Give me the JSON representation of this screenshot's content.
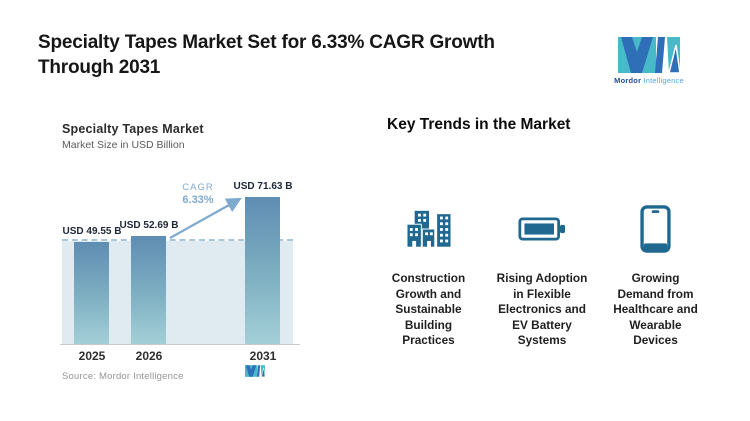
{
  "header": {
    "title": "Specialty Tapes Market Set for 6.33% CAGR Growth\nThrough 2031",
    "brand": {
      "name_bold": "Mordor",
      "name_light": "Intelligence"
    }
  },
  "chart": {
    "title": "Specialty Tapes Market",
    "subtitle": "Market Size in USD Billion",
    "cagr": {
      "label": "CAGR",
      "value": "6.33%"
    },
    "source": "Source: Mordor Intelligence"
  },
  "chart_data": {
    "type": "bar",
    "title": "Specialty Tapes Market",
    "subtitle": "Market Size in USD Billion",
    "unit": "USD Billion",
    "categories": [
      "2025",
      "2026",
      "2031"
    ],
    "values": [
      49.55,
      52.69,
      71.63
    ],
    "data_labels": [
      "USD 49.55 B",
      "USD 52.69 B",
      "USD 71.63 B"
    ],
    "annotation": {
      "label": "CAGR",
      "value": "6.33%",
      "from": "2026",
      "to": "2031"
    },
    "reference_line": {
      "style": "dashed",
      "value": 50.2
    },
    "ylim": [
      0,
      80
    ],
    "grid": false,
    "legend": false,
    "bar_gradient": [
      "#5F8DB3",
      "#A3CFD7"
    ],
    "background_band_color": "#E0EAF1"
  },
  "trends": {
    "heading": "Key Trends in the Market",
    "items": [
      {
        "icon": "buildings-icon",
        "text": "Construction\nGrowth and\nSustainable\nBuilding\nPractices"
      },
      {
        "icon": "battery-icon",
        "text": "Rising Adoption\nin Flexible\nElectronics and\nEV Battery\nSystems"
      },
      {
        "icon": "smartphone-icon",
        "text": "Growing\nDemand from\nHealthcare and\nWearable\nDevices"
      }
    ]
  },
  "colors": {
    "accent_teal": "#48B9C9",
    "accent_blue": "#2E6FB7",
    "icon_blue": "#20688F",
    "cagr_blue": "#7FAAD0",
    "dashed_line": "#A9C7DB"
  }
}
